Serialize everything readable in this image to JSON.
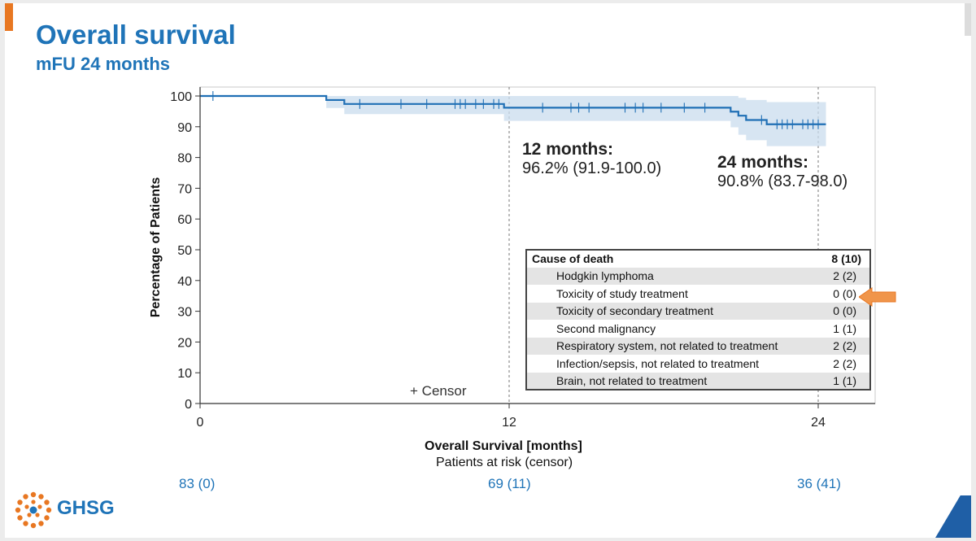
{
  "header": {
    "title": "Overall survival",
    "subtitle": "mFU 24 months"
  },
  "colors": {
    "title": "#1f74b8",
    "curve": "#1f6fb5",
    "ci_band": "#c9dcee",
    "accent_orange": "#e87722"
  },
  "chart_data": {
    "type": "line",
    "xlabel": "Overall Survival [months]",
    "ylabel": "Percentage of Patients",
    "xlim": [
      0,
      26
    ],
    "ylim": [
      0,
      100
    ],
    "xticks": [
      0,
      12,
      24
    ],
    "yticks": [
      0,
      10,
      20,
      30,
      40,
      50,
      60,
      70,
      80,
      90,
      100
    ],
    "grid": false,
    "reference_lines_x": [
      12,
      24
    ],
    "series": [
      {
        "step_points": [
          [
            0,
            100
          ],
          [
            4.9,
            98.7
          ],
          [
            5.6,
            97.4
          ],
          [
            11.8,
            96.2
          ],
          [
            20.6,
            94.9
          ],
          [
            20.9,
            93.6
          ],
          [
            21.2,
            92.2
          ],
          [
            22.0,
            90.8
          ],
          [
            24.3,
            90.8
          ]
        ],
        "ci_lower": [
          [
            0,
            100
          ],
          [
            4.9,
            96.1
          ],
          [
            5.6,
            94.1
          ],
          [
            11.8,
            91.9
          ],
          [
            20.6,
            89.8
          ],
          [
            20.9,
            87.4
          ],
          [
            21.2,
            85.6
          ],
          [
            22.0,
            83.7
          ],
          [
            24.3,
            83.7
          ]
        ],
        "ci_upper": [
          [
            0,
            100
          ],
          [
            4.9,
            100
          ],
          [
            5.6,
            100
          ],
          [
            11.8,
            100
          ],
          [
            20.6,
            100
          ],
          [
            20.9,
            99.4
          ],
          [
            21.2,
            98.7
          ],
          [
            22.0,
            98.0
          ],
          [
            24.3,
            98.0
          ]
        ],
        "censor_times": [
          0.5,
          6.2,
          7.8,
          8.8,
          9.9,
          10.1,
          10.3,
          10.7,
          11.0,
          11.4,
          11.6,
          13.3,
          14.4,
          14.7,
          15.1,
          16.5,
          16.9,
          17.2,
          17.9,
          18.8,
          19.6,
          21.8,
          22.4,
          22.6,
          22.8,
          23.0,
          23.4,
          23.6,
          23.8,
          24.0
        ]
      }
    ],
    "annotations": [
      {
        "heading": "12 months:",
        "value": "96.2% (91.9-100.0)"
      },
      {
        "heading": "24 months:",
        "value": "90.8% (83.7-98.0)"
      }
    ],
    "censor_legend": "Censor",
    "risk_table": {
      "title": "Patients at risk (censor)",
      "values": [
        {
          "x": 0,
          "label": "83 (0)"
        },
        {
          "x": 12,
          "label": "69 (11)"
        },
        {
          "x": 24,
          "label": "36 (41)"
        }
      ]
    }
  },
  "cause_table": {
    "header": {
      "label": "Cause of death",
      "value": "8 (10)"
    },
    "rows": [
      {
        "label": "Hodgkin lymphoma",
        "value": "2 (2)"
      },
      {
        "label": "Toxicity of study treatment",
        "value": "0 (0)"
      },
      {
        "label": "Toxicity of secondary treatment",
        "value": "0 (0)"
      },
      {
        "label": "Second malignancy",
        "value": "1 (1)"
      },
      {
        "label": "Respiratory system, not related to treatment",
        "value": "2 (2)"
      },
      {
        "label": "Infection/sepsis, not related to treatment",
        "value": "2 (2)"
      },
      {
        "label": "Brain, not related to treatment",
        "value": "1 (1)"
      }
    ]
  },
  "logo": {
    "text": "GHSG"
  }
}
